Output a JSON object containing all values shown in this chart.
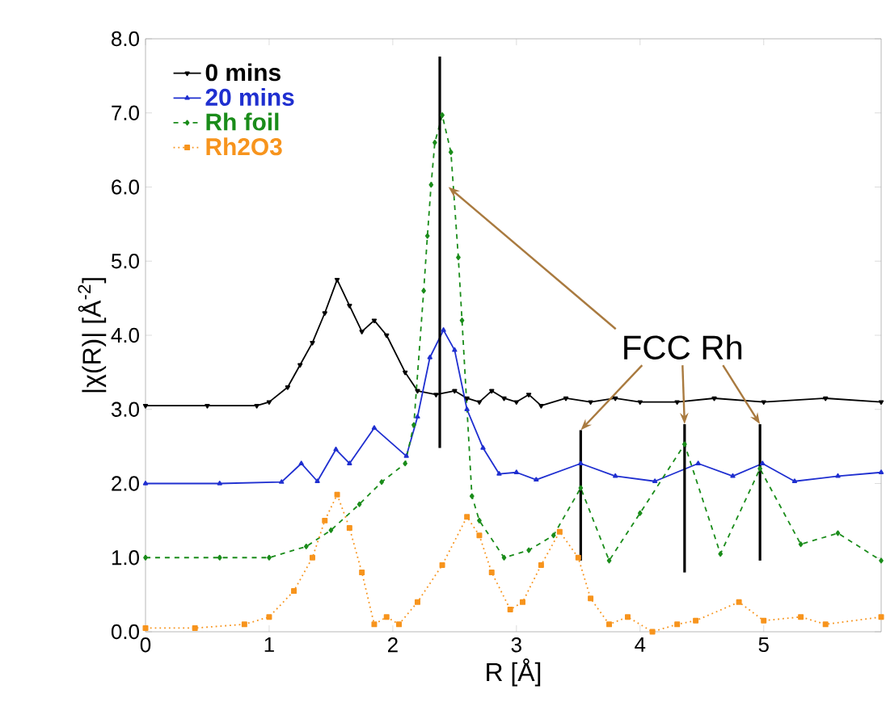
{
  "chart_data": {
    "type": "line",
    "xlabel": "R [Å]",
    "ylabel": "|χ(R)| [Å$^{-2}$]",
    "xlim": [
      0,
      5.95
    ],
    "ylim": [
      0,
      8
    ],
    "xticks": [
      0,
      1,
      2,
      3,
      4,
      5
    ],
    "yticks": [
      {
        "value": 0,
        "label": "0.0"
      },
      {
        "value": 1,
        "label": "1.0"
      },
      {
        "value": 2,
        "label": "2.0"
      },
      {
        "value": 3,
        "label": "3.0"
      },
      {
        "value": 4,
        "label": "4.0"
      },
      {
        "value": 5,
        "label": "5.0"
      },
      {
        "value": 6,
        "label": "6.0"
      },
      {
        "value": 7,
        "label": "7.0"
      },
      {
        "value": 8,
        "label": "8.0"
      }
    ],
    "legend": "top left",
    "grid": false,
    "annotations": [
      {
        "text": "FCC Rh",
        "x": 2.45,
        "y": 6.0
      }
    ],
    "ref_lines": [
      {
        "axis": "x",
        "value": 2.38,
        "color": "#000000"
      },
      {
        "axis": "x",
        "value": 3.52,
        "color": "#000000"
      },
      {
        "axis": "x",
        "value": 4.36,
        "color": "#000000"
      },
      {
        "axis": "x",
        "value": 4.97,
        "color": "#000000"
      }
    ],
    "series": [
      {
        "name": "0 mins",
        "color": "#000000",
        "marker": "triangle",
        "line_style": "solid",
        "x": [
          0,
          0.5,
          0.9,
          1.0,
          1.15,
          1.25,
          1.35,
          1.45,
          1.55,
          1.65,
          1.75,
          1.85,
          1.95,
          2.1,
          2.2,
          2.35,
          2.5,
          2.6,
          2.7,
          2.8,
          2.9,
          3.0,
          3.1,
          3.2,
          3.4,
          3.6,
          3.8,
          4.0,
          4.3,
          4.6,
          5.0,
          5.5,
          5.95
        ],
        "values": [
          3.05,
          3.05,
          3.05,
          3.1,
          3.3,
          3.6,
          3.9,
          4.3,
          4.75,
          4.4,
          4.05,
          4.2,
          4.0,
          3.5,
          3.25,
          3.2,
          3.25,
          3.15,
          3.1,
          3.25,
          3.15,
          3.1,
          3.2,
          3.05,
          3.15,
          3.1,
          3.15,
          3.1,
          3.1,
          3.15,
          3.1,
          3.15,
          3.1
        ]
      },
      {
        "name": "20 mins",
        "color": "#1f2fd0",
        "marker": "triangle",
        "line_style": "solid",
        "x": [
          0,
          0.6,
          1.1,
          1.26,
          1.39,
          1.54,
          1.65,
          1.85,
          2.11,
          2.2,
          2.3,
          2.41,
          2.5,
          2.6,
          2.73,
          2.86,
          3.0,
          3.16,
          3.52,
          3.8,
          4.12,
          4.47,
          4.75,
          4.99,
          5.25,
          5.6,
          5.95
        ],
        "values": [
          2.0,
          2.0,
          2.02,
          2.27,
          2.03,
          2.46,
          2.27,
          2.75,
          2.37,
          2.9,
          3.7,
          4.07,
          3.8,
          3.0,
          2.48,
          2.13,
          2.15,
          2.05,
          2.27,
          2.1,
          2.03,
          2.27,
          2.1,
          2.27,
          2.03,
          2.1,
          2.15
        ]
      },
      {
        "name": "Rh foil",
        "color": "#1a8c1a",
        "marker": "diamond",
        "line_style": "dashed",
        "x": [
          0,
          0.6,
          1.0,
          1.3,
          1.5,
          1.73,
          1.91,
          2.1,
          2.17,
          2.25,
          2.28,
          2.31,
          2.34,
          2.4,
          2.47,
          2.53,
          2.56,
          2.64,
          2.7,
          2.9,
          3.1,
          3.3,
          3.52,
          3.75,
          4.0,
          4.36,
          4.65,
          4.97,
          5.3,
          5.6,
          5.95
        ],
        "values": [
          1.0,
          1.0,
          1.0,
          1.15,
          1.37,
          1.72,
          2.02,
          2.27,
          2.79,
          4.6,
          5.34,
          6.03,
          6.6,
          6.97,
          6.47,
          5.05,
          4.2,
          1.83,
          1.5,
          1.0,
          1.1,
          1.3,
          1.94,
          0.96,
          1.6,
          2.53,
          1.05,
          2.2,
          1.18,
          1.33,
          0.96
        ]
      },
      {
        "name": "Rh2O3",
        "color": "#f7941d",
        "marker": "square",
        "line_style": "dotted",
        "x": [
          0,
          0.4,
          0.8,
          1.0,
          1.2,
          1.35,
          1.45,
          1.55,
          1.65,
          1.75,
          1.85,
          1.95,
          2.05,
          2.2,
          2.4,
          2.6,
          2.7,
          2.8,
          2.95,
          3.05,
          3.2,
          3.35,
          3.5,
          3.6,
          3.75,
          3.9,
          4.1,
          4.3,
          4.45,
          4.8,
          5.0,
          5.3,
          5.5,
          5.95
        ],
        "values": [
          0.05,
          0.05,
          0.1,
          0.2,
          0.55,
          1.0,
          1.5,
          1.85,
          1.4,
          0.8,
          0.1,
          0.2,
          0.1,
          0.4,
          0.9,
          1.55,
          1.3,
          0.8,
          0.3,
          0.4,
          0.9,
          1.35,
          1.0,
          0.45,
          0.1,
          0.2,
          0.0,
          0.1,
          0.15,
          0.4,
          0.15,
          0.2,
          0.1,
          0.2
        ]
      }
    ]
  }
}
